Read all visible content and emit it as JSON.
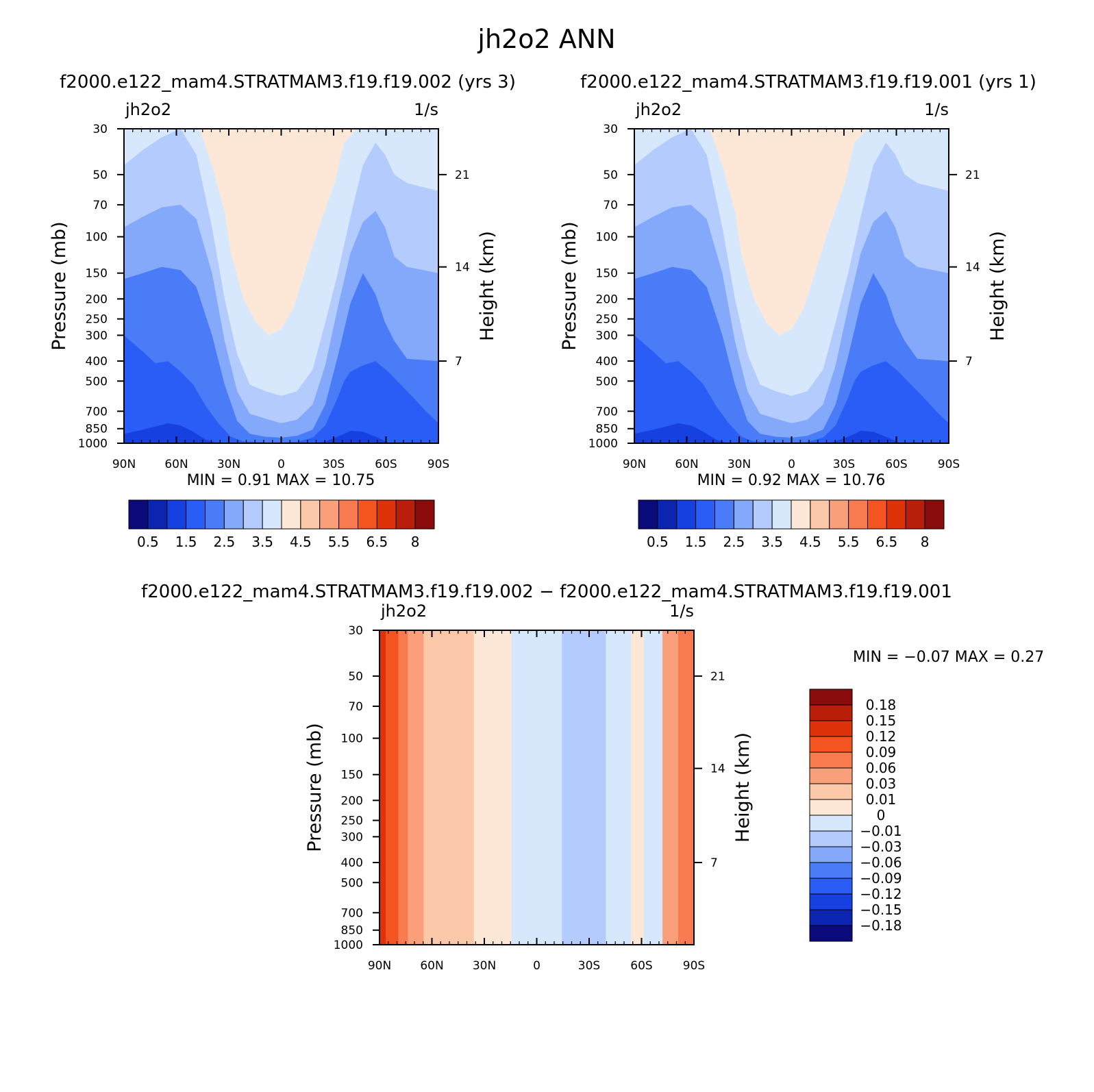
{
  "figure": {
    "title": "jh2o2 ANN",
    "diff_title": "f2000.e122_mam4.STRATMAM3.f19.f19.002 − f2000.e122_mam4.STRATMAM3.f19.f19.001"
  },
  "chart_data": [
    {
      "type": "contour",
      "title": "f2000.e122_mam4.STRATMAM3.f19.f19.002 (yrs 3)",
      "left_label": "jh2o2",
      "right_label": "1/s",
      "xlabel": "",
      "ylabel": "Pressure (mb)",
      "y2label": "Height (km)",
      "x_ticks": [
        "90N",
        "60N",
        "30N",
        "0",
        "30S",
        "60S",
        "90S"
      ],
      "y_ticks": [
        30,
        50,
        70,
        100,
        150,
        200,
        250,
        300,
        400,
        500,
        700,
        850,
        1000
      ],
      "y2_ticks": [
        21,
        14,
        7
      ],
      "ylim": [
        1000,
        30
      ],
      "min_text": "MIN =    0.91   MAX =   10.75",
      "min": 0.91,
      "max": 10.75,
      "levels": [
        0.5,
        1,
        1.5,
        2,
        2.5,
        3,
        3.5,
        4,
        4.5,
        5,
        5.5,
        6,
        6.5,
        7,
        8
      ],
      "colorbar_labels": [
        "0.5",
        "1.5",
        "2.5",
        "3.5",
        "4.5",
        "5.5",
        "6.5",
        "8"
      ],
      "colors": [
        "#0a0a7a",
        "#0b25b0",
        "#1640e0",
        "#2a5df5",
        "#4a7cf7",
        "#84a9fb",
        "#b3cbfd",
        "#d8e8fc",
        "#fde8d8",
        "#fbc8aa",
        "#f9a07a",
        "#f77b4f",
        "#f4541f",
        "#de3208",
        "#b81e0a",
        "#8a0b0b"
      ],
      "bands": [
        {
          "level": 3.5,
          "x": [
            0,
            8,
            15,
            24,
            28,
            32,
            34,
            38,
            42,
            46,
            50,
            54,
            58,
            62,
            67,
            70,
            74,
            76,
            78,
            86,
            90,
            93,
            100
          ],
          "p": [
            30,
            30,
            30,
            30,
            45,
            75,
            120,
            200,
            260,
            300,
            280,
            220,
            140,
            90,
            55,
            35,
            30,
            30,
            30,
            30,
            30,
            30,
            30
          ]
        },
        {
          "level": 3,
          "x": [
            0,
            6,
            12,
            18,
            23,
            28,
            32,
            36,
            40,
            45,
            50,
            55,
            60,
            64,
            68,
            72,
            76,
            80,
            83,
            86,
            90,
            100
          ],
          "p": [
            45,
            38,
            33,
            30,
            40,
            90,
            200,
            370,
            520,
            560,
            590,
            560,
            440,
            260,
            150,
            80,
            45,
            35,
            40,
            50,
            55,
            60
          ]
        },
        {
          "level": 2.5,
          "x": [
            0,
            6,
            12,
            18,
            23,
            28,
            32,
            36,
            40,
            45,
            50,
            55,
            60,
            64,
            68,
            72,
            76,
            80,
            83,
            86,
            90,
            100
          ],
          "p": [
            90,
            80,
            72,
            70,
            82,
            150,
            320,
            560,
            720,
            760,
            800,
            770,
            650,
            420,
            220,
            120,
            85,
            75,
            90,
            125,
            140,
            150
          ]
        },
        {
          "level": 2,
          "x": [
            0,
            6,
            12,
            18,
            23,
            28,
            32,
            36,
            40,
            45,
            50,
            55,
            60,
            64,
            68,
            72,
            76,
            80,
            83,
            86,
            90,
            100
          ],
          "p": [
            160,
            150,
            140,
            145,
            175,
            300,
            520,
            780,
            900,
            930,
            940,
            920,
            860,
            650,
            380,
            210,
            150,
            190,
            260,
            320,
            390,
            400
          ]
        },
        {
          "level": 1.5,
          "x": [
            0,
            6,
            10,
            14,
            18,
            22,
            26,
            30,
            34,
            38,
            45,
            50,
            55,
            60,
            64,
            68,
            70,
            72,
            76,
            80,
            84,
            88,
            92,
            96,
            100
          ],
          "p": [
            300,
            360,
            410,
            400,
            450,
            520,
            660,
            800,
            930,
            980,
            990,
            990,
            985,
            940,
            820,
            600,
            500,
            450,
            420,
            400,
            450,
            520,
            600,
            700,
            800
          ]
        },
        {
          "level": 1,
          "x": [
            0,
            6,
            10,
            14,
            18,
            22,
            26,
            30,
            34,
            38,
            45,
            50,
            55,
            60,
            64,
            68,
            70,
            72,
            76,
            80,
            84,
            88,
            92,
            96,
            100
          ],
          "p": [
            900,
            860,
            830,
            800,
            820,
            880,
            960,
            1000,
            1000,
            1000,
            1000,
            1000,
            1000,
            1000,
            980,
            930,
            900,
            870,
            880,
            930,
            990,
            1000,
            1000,
            1000,
            1000
          ]
        }
      ],
      "base_level": 4
    },
    {
      "type": "contour",
      "title": "f2000.e122_mam4.STRATMAM3.f19.f19.001 (yrs 1)",
      "left_label": "jh2o2",
      "right_label": "1/s",
      "xlabel": "",
      "ylabel": "Pressure (mb)",
      "y2label": "Height (km)",
      "x_ticks": [
        "90N",
        "60N",
        "30N",
        "0",
        "30S",
        "60S",
        "90S"
      ],
      "y_ticks": [
        30,
        50,
        70,
        100,
        150,
        200,
        250,
        300,
        400,
        500,
        700,
        850,
        1000
      ],
      "y2_ticks": [
        21,
        14,
        7
      ],
      "ylim": [
        1000,
        30
      ],
      "min_text": "MIN =    0.92   MAX =   10.76",
      "min": 0.92,
      "max": 10.76,
      "levels": [
        0.5,
        1,
        1.5,
        2,
        2.5,
        3,
        3.5,
        4,
        4.5,
        5,
        5.5,
        6,
        6.5,
        7,
        8
      ],
      "colorbar_labels": [
        "0.5",
        "1.5",
        "2.5",
        "3.5",
        "4.5",
        "5.5",
        "6.5",
        "8"
      ],
      "colors": [
        "#0a0a7a",
        "#0b25b0",
        "#1640e0",
        "#2a5df5",
        "#4a7cf7",
        "#84a9fb",
        "#b3cbfd",
        "#d8e8fc",
        "#fde8d8",
        "#fbc8aa",
        "#f9a07a",
        "#f77b4f",
        "#f4541f",
        "#de3208",
        "#b81e0a",
        "#8a0b0b"
      ],
      "bands": [
        {
          "level": 3.5,
          "x": [
            0,
            8,
            15,
            24,
            28,
            32,
            34,
            38,
            42,
            46,
            50,
            54,
            58,
            62,
            67,
            70,
            74,
            76,
            78,
            86,
            90,
            93,
            100
          ],
          "p": [
            30,
            30,
            30,
            30,
            45,
            75,
            120,
            200,
            260,
            300,
            280,
            220,
            140,
            90,
            55,
            35,
            30,
            30,
            30,
            30,
            30,
            30,
            30
          ]
        },
        {
          "level": 3,
          "x": [
            0,
            6,
            12,
            18,
            23,
            28,
            32,
            36,
            40,
            45,
            50,
            55,
            60,
            64,
            68,
            72,
            76,
            80,
            83,
            86,
            90,
            100
          ],
          "p": [
            45,
            38,
            33,
            30,
            40,
            90,
            200,
            370,
            520,
            560,
            590,
            560,
            440,
            260,
            150,
            80,
            45,
            35,
            40,
            50,
            55,
            60
          ]
        },
        {
          "level": 2.5,
          "x": [
            0,
            6,
            12,
            18,
            23,
            28,
            32,
            36,
            40,
            45,
            50,
            55,
            60,
            64,
            68,
            72,
            76,
            80,
            83,
            86,
            90,
            100
          ],
          "p": [
            90,
            80,
            72,
            70,
            82,
            150,
            320,
            560,
            720,
            760,
            800,
            770,
            650,
            420,
            220,
            120,
            85,
            75,
            90,
            125,
            140,
            150
          ]
        },
        {
          "level": 2,
          "x": [
            0,
            6,
            12,
            18,
            23,
            28,
            32,
            36,
            40,
            45,
            50,
            55,
            60,
            64,
            68,
            72,
            76,
            80,
            83,
            86,
            90,
            100
          ],
          "p": [
            160,
            150,
            140,
            145,
            175,
            300,
            520,
            780,
            900,
            930,
            940,
            920,
            860,
            650,
            380,
            210,
            150,
            190,
            260,
            320,
            390,
            400
          ]
        },
        {
          "level": 1.5,
          "x": [
            0,
            6,
            10,
            14,
            18,
            22,
            26,
            30,
            34,
            38,
            45,
            50,
            55,
            60,
            64,
            68,
            70,
            72,
            76,
            80,
            84,
            88,
            92,
            96,
            100
          ],
          "p": [
            300,
            360,
            410,
            400,
            450,
            520,
            660,
            800,
            930,
            980,
            990,
            990,
            985,
            940,
            820,
            600,
            500,
            450,
            420,
            400,
            450,
            520,
            600,
            700,
            800
          ]
        },
        {
          "level": 1,
          "x": [
            0,
            6,
            10,
            14,
            18,
            22,
            26,
            30,
            34,
            38,
            45,
            50,
            55,
            60,
            64,
            68,
            70,
            72,
            76,
            80,
            84,
            88,
            92,
            96,
            100
          ],
          "p": [
            900,
            860,
            830,
            800,
            820,
            880,
            960,
            1000,
            1000,
            1000,
            1000,
            1000,
            1000,
            1000,
            980,
            930,
            900,
            870,
            880,
            930,
            990,
            1000,
            1000,
            1000,
            1000
          ]
        }
      ],
      "base_level": 4
    },
    {
      "type": "contour",
      "title": "",
      "left_label": "jh2o2",
      "right_label": "1/s",
      "xlabel": "",
      "ylabel": "Pressure (mb)",
      "y2label": "Height (km)",
      "x_ticks": [
        "90N",
        "60N",
        "30N",
        "0",
        "30S",
        "60S",
        "90S"
      ],
      "y_ticks": [
        30,
        50,
        70,
        100,
        150,
        200,
        250,
        300,
        400,
        500,
        700,
        850,
        1000
      ],
      "y2_ticks": [
        21,
        14,
        7
      ],
      "ylim": [
        1000,
        30
      ],
      "min_text": "MIN =    −0.07    MAX =     0.27",
      "min": -0.07,
      "max": 0.27,
      "levels": [
        -0.18,
        -0.15,
        -0.12,
        -0.09,
        -0.06,
        -0.03,
        -0.01,
        0,
        0.01,
        0.03,
        0.06,
        0.09,
        0.12,
        0.15,
        0.18
      ],
      "colorbar_labels": [
        "0.18",
        "0.15",
        "0.12",
        "0.09",
        "0.06",
        "0.03",
        "0.01",
        "0",
        "−0.01",
        "−0.03",
        "−0.06",
        "−0.09",
        "−0.12",
        "−0.15",
        "−0.18"
      ],
      "colors": [
        "#8a0b0b",
        "#b81e0a",
        "#de3208",
        "#f4541f",
        "#f77b4f",
        "#f9a07a",
        "#fbc8aa",
        "#fde8d8",
        "#d8e8fc",
        "#b3cbfd",
        "#84a9fb",
        "#4a7cf7",
        "#2a5df5",
        "#1640e0",
        "#0b25b0",
        "#0a0a7a"
      ],
      "columns": [
        {
          "x0": 0,
          "x1": 2,
          "value": 0.12
        },
        {
          "x0": 2,
          "x1": 6,
          "value": 0.09
        },
        {
          "x0": 6,
          "x1": 9,
          "value": 0.06
        },
        {
          "x0": 9,
          "x1": 14,
          "value": 0.03
        },
        {
          "x0": 14,
          "x1": 22,
          "value": 0.01
        },
        {
          "x0": 22,
          "x1": 30,
          "value": 0.01
        },
        {
          "x0": 30,
          "x1": 42,
          "value": 0
        },
        {
          "x0": 42,
          "x1": 50,
          "value": -0.01
        },
        {
          "x0": 50,
          "x1": 58,
          "value": -0.01
        },
        {
          "x0": 58,
          "x1": 72,
          "value": -0.03
        },
        {
          "x0": 72,
          "x1": 80,
          "value": -0.01
        },
        {
          "x0": 80,
          "x1": 84,
          "value": 0
        },
        {
          "x0": 84,
          "x1": 90,
          "value": -0.01
        },
        {
          "x0": 90,
          "x1": 95,
          "value": 0.03
        },
        {
          "x0": 95,
          "x1": 100,
          "value": 0.06
        }
      ]
    }
  ]
}
